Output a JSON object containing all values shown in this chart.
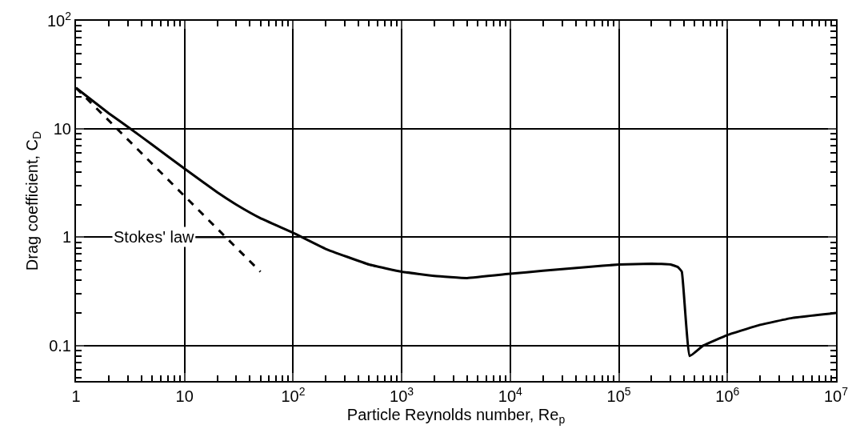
{
  "chart_data": {
    "type": "line",
    "xlabel": "Particle Reynolds number, Re$_{p}$",
    "ylabel": "Drag coefficient, C$_{D}$",
    "log": "xy",
    "grid": true,
    "marker": "none",
    "xlim": [
      1,
      10000000
    ],
    "ylim": [
      0.047,
      100
    ],
    "xticks": [
      1,
      10,
      {
        "value": 100,
        "label": "10$^{2}$"
      },
      {
        "value": 1000,
        "label": "10$^{3}$"
      },
      {
        "value": 10000,
        "label": "10$^{4}$"
      },
      {
        "value": 100000,
        "label": "10$^{5}$"
      },
      {
        "value": 1000000,
        "label": "10$^{6}$"
      },
      {
        "value": 10000000,
        "label": "10$^{7}$"
      }
    ],
    "yticks": [
      0.1,
      1,
      10,
      {
        "value": 100,
        "label": "10$^{2}$"
      }
    ],
    "series": [
      {
        "color": "#000000",
        "line_style": "solid",
        "x": [
          1,
          2,
          3.2,
          5,
          10,
          20,
          30,
          50,
          100,
          200,
          500,
          1000,
          2000,
          4000,
          10000,
          20000,
          50000,
          100000,
          200000,
          300000,
          350000,
          380000,
          450000,
          600000,
          1000000,
          2000000,
          4000000,
          10000000
        ],
        "values": [
          24,
          14,
          10,
          7.2,
          4.3,
          2.6,
          2.0,
          1.5,
          1.1,
          0.78,
          0.56,
          0.48,
          0.44,
          0.42,
          0.46,
          0.49,
          0.53,
          0.56,
          0.57,
          0.56,
          0.53,
          0.48,
          0.08,
          0.1,
          0.125,
          0.155,
          0.18,
          0.2
        ]
      },
      {
        "color": "#000000",
        "line_style": "dashed",
        "x": [
          1,
          50
        ],
        "values": [
          24,
          0.48
        ]
      }
    ],
    "annotations": [
      {
        "text": "Stokes' law",
        "x": 24,
        "y": 1
      }
    ]
  }
}
